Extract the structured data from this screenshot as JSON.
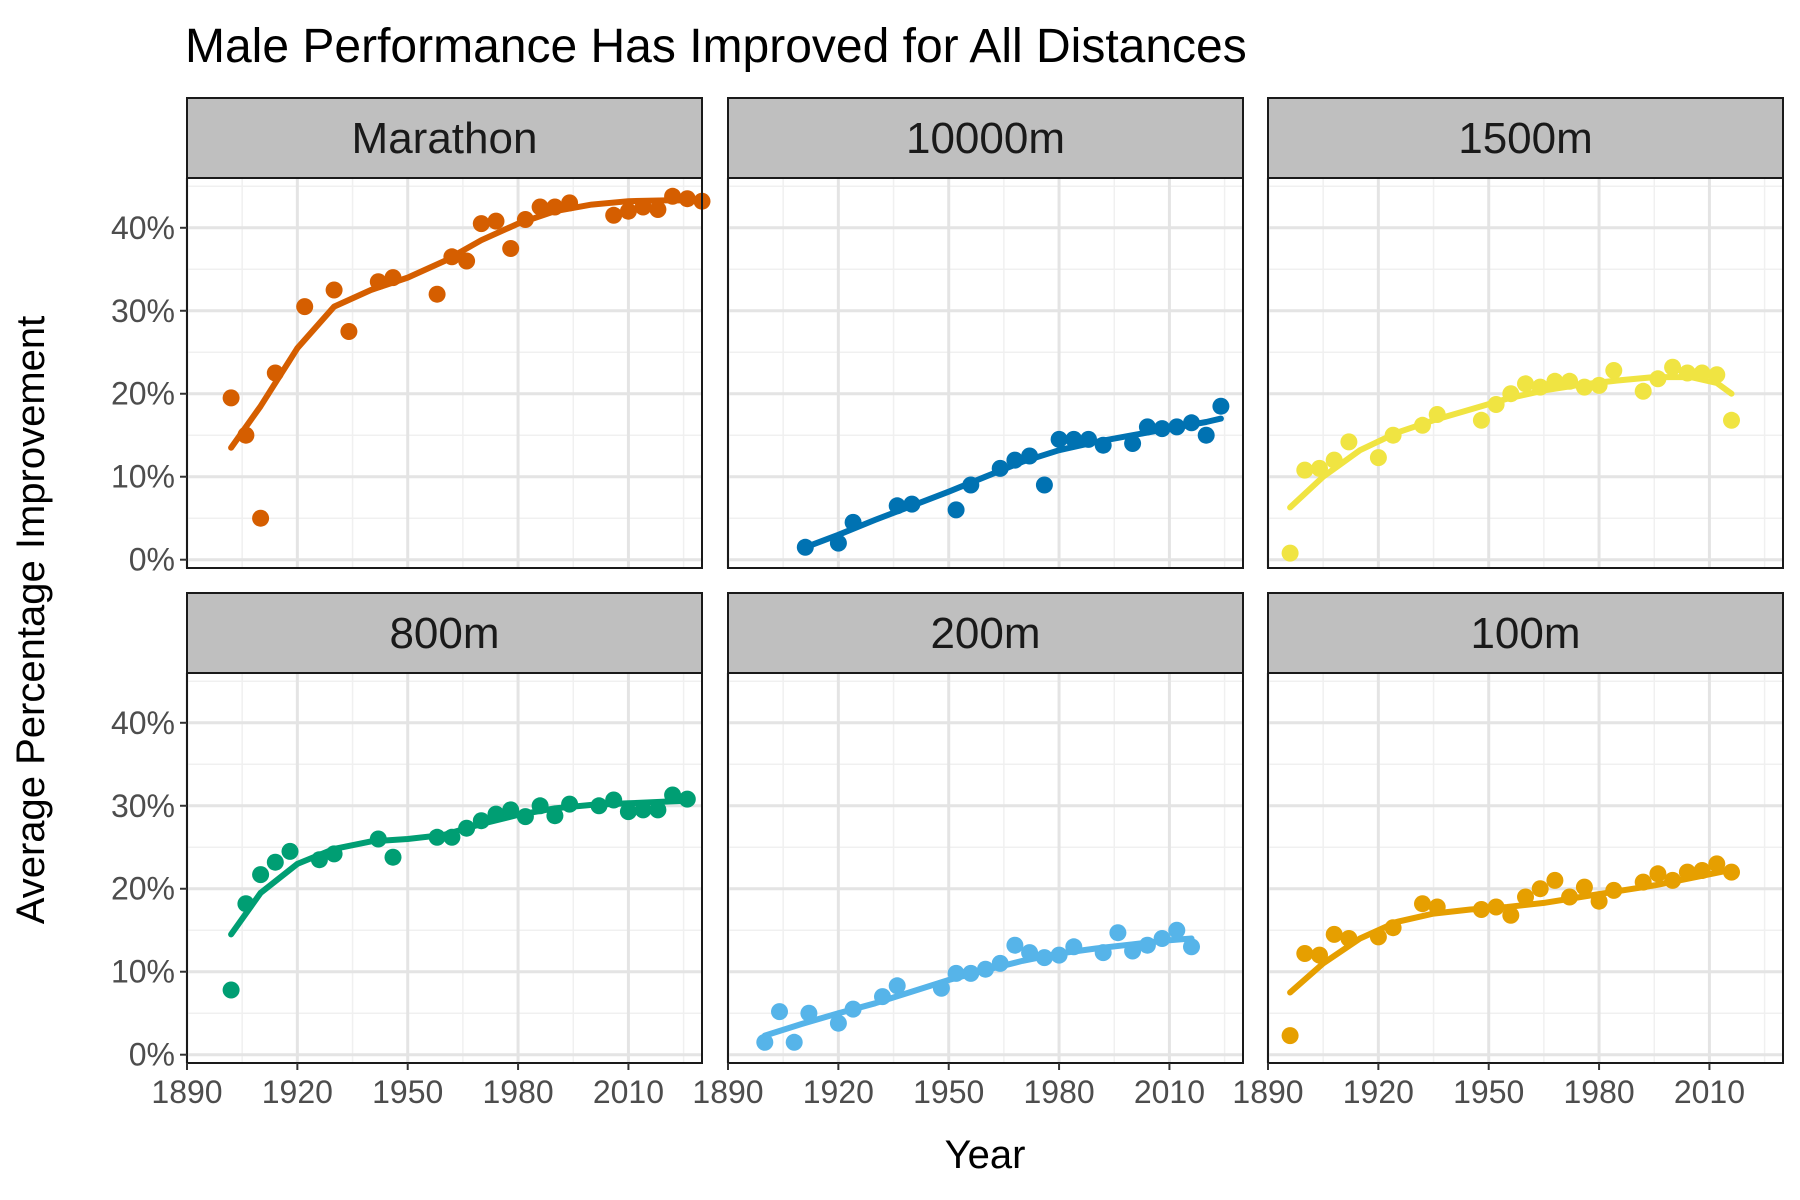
{
  "chart_data": {
    "type": "scatter",
    "title": "Male Performance Has Improved for All Distances",
    "xlabel": "Year",
    "ylabel": "Average Percentage Improvement",
    "xlim": [
      1890,
      2030
    ],
    "ylim": [
      -1,
      46
    ],
    "x_ticks": [
      1890,
      1920,
      1950,
      1980,
      2010
    ],
    "y_ticks": [
      0,
      10,
      20,
      30,
      40
    ],
    "y_tick_labels": [
      "0%",
      "10%",
      "20%",
      "30%",
      "40%"
    ],
    "grid": true,
    "facets": [
      {
        "name": "Marathon",
        "color": "#D55E00",
        "points": [
          [
            1902,
            19.5
          ],
          [
            1906,
            15
          ],
          [
            1910,
            5
          ],
          [
            1914,
            22.5
          ],
          [
            1922,
            30.5
          ],
          [
            1930,
            32.5
          ],
          [
            1934,
            27.5
          ],
          [
            1942,
            33.5
          ],
          [
            1946,
            34
          ],
          [
            1958,
            32
          ],
          [
            1962,
            36.5
          ],
          [
            1966,
            36
          ],
          [
            1970,
            40.5
          ],
          [
            1974,
            40.8
          ],
          [
            1978,
            37.5
          ],
          [
            1982,
            41
          ],
          [
            1986,
            42.5
          ],
          [
            1990,
            42.5
          ],
          [
            1994,
            43
          ],
          [
            2006,
            41.5
          ],
          [
            2010,
            42
          ],
          [
            2014,
            42.5
          ],
          [
            2018,
            42.2
          ],
          [
            2022,
            43.8
          ],
          [
            2026,
            43.5
          ],
          [
            2030,
            43.2
          ]
        ],
        "trend": [
          [
            1902,
            13.5
          ],
          [
            1910,
            18.5
          ],
          [
            1920,
            25.5
          ],
          [
            1930,
            30.5
          ],
          [
            1940,
            32.5
          ],
          [
            1950,
            34
          ],
          [
            1960,
            36
          ],
          [
            1970,
            38.5
          ],
          [
            1980,
            40.5
          ],
          [
            1990,
            42
          ],
          [
            2000,
            42.8
          ],
          [
            2010,
            43.2
          ],
          [
            2020,
            43.3
          ],
          [
            2030,
            43.3
          ]
        ]
      },
      {
        "name": "10000m",
        "color": "#0072B2",
        "points": [
          [
            1911,
            1.5
          ],
          [
            1920,
            2
          ],
          [
            1924,
            4.5
          ],
          [
            1936,
            6.5
          ],
          [
            1940,
            6.7
          ],
          [
            1952,
            6
          ],
          [
            1956,
            9
          ],
          [
            1964,
            11
          ],
          [
            1968,
            12
          ],
          [
            1972,
            12.5
          ],
          [
            1976,
            9
          ],
          [
            1980,
            14.5
          ],
          [
            1984,
            14.5
          ],
          [
            1988,
            14.5
          ],
          [
            1992,
            13.8
          ],
          [
            2000,
            14
          ],
          [
            2004,
            16
          ],
          [
            2008,
            15.8
          ],
          [
            2012,
            16
          ],
          [
            2016,
            16.5
          ],
          [
            2020,
            15
          ],
          [
            2024,
            18.5
          ]
        ],
        "trend": [
          [
            1911,
            1.5
          ],
          [
            1920,
            3
          ],
          [
            1930,
            4.8
          ],
          [
            1940,
            6.5
          ],
          [
            1950,
            8.2
          ],
          [
            1960,
            10
          ],
          [
            1970,
            11.8
          ],
          [
            1980,
            13.2
          ],
          [
            1990,
            14.2
          ],
          [
            2000,
            15
          ],
          [
            2010,
            15.8
          ],
          [
            2020,
            16.6
          ],
          [
            2024,
            17
          ]
        ]
      },
      {
        "name": "1500m",
        "color": "#F0E442",
        "points": [
          [
            1896,
            0.8
          ],
          [
            1900,
            10.8
          ],
          [
            1904,
            11
          ],
          [
            1908,
            12
          ],
          [
            1912,
            14.2
          ],
          [
            1920,
            12.3
          ],
          [
            1924,
            15
          ],
          [
            1932,
            16.2
          ],
          [
            1936,
            17.5
          ],
          [
            1948,
            16.8
          ],
          [
            1952,
            18.7
          ],
          [
            1956,
            20
          ],
          [
            1960,
            21.2
          ],
          [
            1964,
            20.8
          ],
          [
            1968,
            21.5
          ],
          [
            1972,
            21.5
          ],
          [
            1976,
            20.8
          ],
          [
            1980,
            21
          ],
          [
            1984,
            22.8
          ],
          [
            1992,
            20.3
          ],
          [
            1996,
            21.8
          ],
          [
            2000,
            23.2
          ],
          [
            2004,
            22.5
          ],
          [
            2008,
            22.5
          ],
          [
            2012,
            22.3
          ],
          [
            2016,
            16.8
          ]
        ],
        "trend": [
          [
            1896,
            6.3
          ],
          [
            1905,
            10
          ],
          [
            1915,
            13.2
          ],
          [
            1925,
            15.3
          ],
          [
            1935,
            16.8
          ],
          [
            1945,
            18.1
          ],
          [
            1955,
            19.4
          ],
          [
            1965,
            20.4
          ],
          [
            1975,
            21.1
          ],
          [
            1985,
            21.6
          ],
          [
            1995,
            22
          ],
          [
            2005,
            22
          ],
          [
            2012,
            21.3
          ],
          [
            2016,
            20
          ]
        ]
      },
      {
        "name": "800m",
        "color": "#009E73",
        "points": [
          [
            1902,
            7.8
          ],
          [
            1906,
            18.2
          ],
          [
            1910,
            21.7
          ],
          [
            1914,
            23.2
          ],
          [
            1918,
            24.5
          ],
          [
            1926,
            23.5
          ],
          [
            1930,
            24.2
          ],
          [
            1942,
            26
          ],
          [
            1946,
            23.8
          ],
          [
            1958,
            26.2
          ],
          [
            1962,
            26.2
          ],
          [
            1966,
            27.3
          ],
          [
            1970,
            28.2
          ],
          [
            1974,
            29
          ],
          [
            1978,
            29.5
          ],
          [
            1982,
            28.7
          ],
          [
            1986,
            30
          ],
          [
            1990,
            28.8
          ],
          [
            1994,
            30.2
          ],
          [
            2002,
            30
          ],
          [
            2006,
            30.7
          ],
          [
            2010,
            29.3
          ],
          [
            2014,
            29.5
          ],
          [
            2018,
            29.5
          ],
          [
            2022,
            31.3
          ],
          [
            2026,
            30.8
          ]
        ],
        "trend": [
          [
            1902,
            14.5
          ],
          [
            1910,
            19.5
          ],
          [
            1920,
            23
          ],
          [
            1930,
            24.8
          ],
          [
            1940,
            25.7
          ],
          [
            1950,
            26
          ],
          [
            1960,
            26.5
          ],
          [
            1970,
            27.8
          ],
          [
            1980,
            28.9
          ],
          [
            1990,
            29.7
          ],
          [
            2000,
            30.1
          ],
          [
            2010,
            30.3
          ],
          [
            2020,
            30.5
          ],
          [
            2026,
            30.6
          ]
        ]
      },
      {
        "name": "200m",
        "color": "#56B4E9",
        "points": [
          [
            1900,
            1.5
          ],
          [
            1904,
            5.2
          ],
          [
            1908,
            1.5
          ],
          [
            1912,
            5
          ],
          [
            1920,
            3.8
          ],
          [
            1924,
            5.5
          ],
          [
            1932,
            7
          ],
          [
            1936,
            8.3
          ],
          [
            1948,
            8
          ],
          [
            1952,
            9.8
          ],
          [
            1956,
            9.8
          ],
          [
            1960,
            10.3
          ],
          [
            1964,
            11
          ],
          [
            1968,
            13.2
          ],
          [
            1972,
            12.3
          ],
          [
            1976,
            11.7
          ],
          [
            1980,
            12
          ],
          [
            1984,
            13
          ],
          [
            1992,
            12.3
          ],
          [
            1996,
            14.7
          ],
          [
            2000,
            12.5
          ],
          [
            2004,
            13.2
          ],
          [
            2008,
            14
          ],
          [
            2012,
            15
          ],
          [
            2016,
            13
          ]
        ],
        "trend": [
          [
            1900,
            2.3
          ],
          [
            1910,
            3.7
          ],
          [
            1920,
            5
          ],
          [
            1930,
            6.2
          ],
          [
            1940,
            7.6
          ],
          [
            1950,
            9
          ],
          [
            1960,
            10.2
          ],
          [
            1970,
            11.3
          ],
          [
            1980,
            12.2
          ],
          [
            1990,
            12.8
          ],
          [
            2000,
            13.3
          ],
          [
            2010,
            13.8
          ],
          [
            2016,
            14
          ]
        ]
      },
      {
        "name": "100m",
        "color": "#E69F00",
        "points": [
          [
            1896,
            2.3
          ],
          [
            1900,
            12.2
          ],
          [
            1904,
            12
          ],
          [
            1908,
            14.5
          ],
          [
            1912,
            14
          ],
          [
            1920,
            14.2
          ],
          [
            1924,
            15.3
          ],
          [
            1932,
            18.2
          ],
          [
            1936,
            17.8
          ],
          [
            1948,
            17.5
          ],
          [
            1952,
            17.8
          ],
          [
            1956,
            16.8
          ],
          [
            1960,
            19
          ],
          [
            1964,
            20
          ],
          [
            1968,
            21
          ],
          [
            1972,
            19
          ],
          [
            1976,
            20.2
          ],
          [
            1980,
            18.5
          ],
          [
            1984,
            19.8
          ],
          [
            1992,
            20.8
          ],
          [
            1996,
            21.8
          ],
          [
            2000,
            21
          ],
          [
            2004,
            22
          ],
          [
            2008,
            22.2
          ],
          [
            2012,
            23
          ],
          [
            2016,
            22
          ]
        ],
        "trend": [
          [
            1896,
            7.5
          ],
          [
            1905,
            11
          ],
          [
            1915,
            14
          ],
          [
            1925,
            16
          ],
          [
            1935,
            17
          ],
          [
            1945,
            17.5
          ],
          [
            1955,
            17.8
          ],
          [
            1965,
            18.3
          ],
          [
            1975,
            19
          ],
          [
            1985,
            19.7
          ],
          [
            1995,
            20.4
          ],
          [
            2005,
            21.3
          ],
          [
            2015,
            22.2
          ],
          [
            2016,
            22.3
          ]
        ]
      }
    ]
  }
}
